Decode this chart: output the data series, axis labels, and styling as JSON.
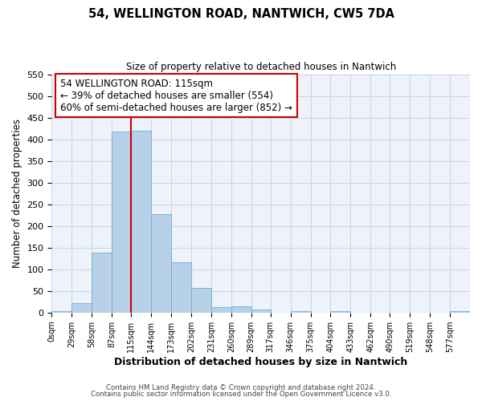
{
  "title": "54, WELLINGTON ROAD, NANTWICH, CW5 7DA",
  "subtitle": "Size of property relative to detached houses in Nantwich",
  "xlabel": "Distribution of detached houses by size in Nantwich",
  "ylabel": "Number of detached properties",
  "bar_edges": [
    0,
    29,
    58,
    87,
    115,
    144,
    173,
    202,
    231,
    260,
    289,
    317,
    346,
    375,
    404,
    433,
    462,
    490,
    519,
    548,
    577
  ],
  "bar_heights": [
    4,
    22,
    138,
    418,
    420,
    228,
    116,
    57,
    13,
    15,
    6,
    0,
    3,
    0,
    4,
    0,
    0,
    0,
    0,
    0,
    3
  ],
  "bar_color": "#b8d0e8",
  "bar_edge_color": "#6baed6",
  "grid_color": "#c8d4e8",
  "background_color": "#eef2fa",
  "property_size": 115,
  "red_line_color": "#cc0000",
  "annotation_line1": "54 WELLINGTON ROAD: 115sqm",
  "annotation_line2": "← 39% of detached houses are smaller (554)",
  "annotation_line3": "60% of semi-detached houses are larger (852) →",
  "annotation_box_color": "#ffffff",
  "annotation_box_edge": "#cc0000",
  "ylim": [
    0,
    550
  ],
  "yticks": [
    0,
    50,
    100,
    150,
    200,
    250,
    300,
    350,
    400,
    450,
    500,
    550
  ],
  "tick_labels": [
    "0sqm",
    "29sqm",
    "58sqm",
    "87sqm",
    "115sqm",
    "144sqm",
    "173sqm",
    "202sqm",
    "231sqm",
    "260sqm",
    "289sqm",
    "317sqm",
    "346sqm",
    "375sqm",
    "404sqm",
    "433sqm",
    "462sqm",
    "490sqm",
    "519sqm",
    "548sqm",
    "577sqm"
  ],
  "footer_line1": "Contains HM Land Registry data © Crown copyright and database right 2024.",
  "footer_line2": "Contains public sector information licensed under the Open Government Licence v3.0."
}
